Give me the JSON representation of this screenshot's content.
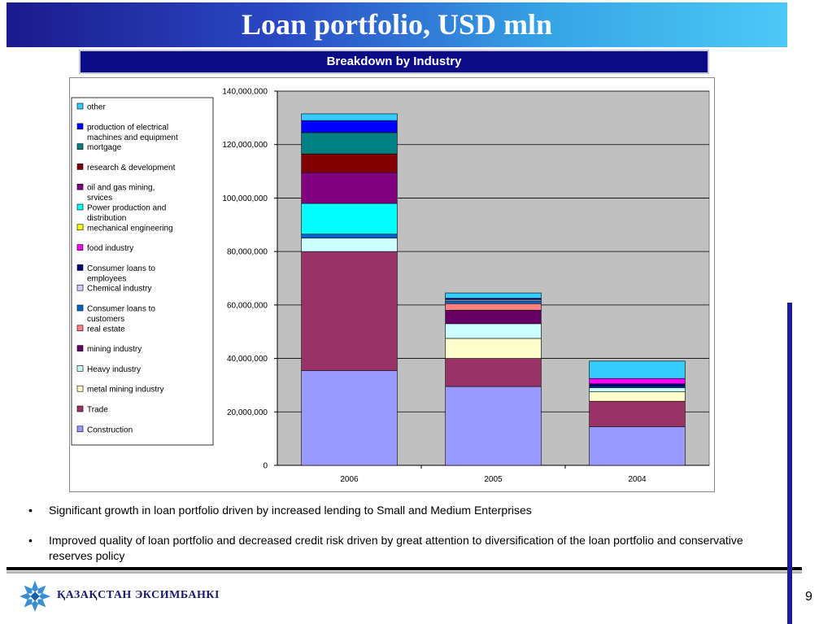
{
  "header": {
    "title": "Loan portfolio, USD mln",
    "subtitle": "Breakdown by Industry"
  },
  "bullets": [
    "Significant growth in loan portfolio driven by increased lending to Small and Medium Enterprises",
    "Improved quality of loan portfolio and decreased credit risk driven by great attention to diversification of the loan portfolio and conservative reserves policy"
  ],
  "footer": {
    "logo_text": "ҚАЗАҚСТАН ЭКСИМБАНКІ",
    "page_number": "9",
    "bullet_symbol": "•"
  },
  "chart_data": {
    "type": "bar",
    "stacked": true,
    "categories": [
      "2006",
      "2005",
      "2004"
    ],
    "ylim": [
      0,
      140000000
    ],
    "yticks": [
      0,
      20000000,
      40000000,
      60000000,
      80000000,
      100000000,
      120000000,
      140000000
    ],
    "ytick_labels": [
      "0",
      "20,000,000",
      "40,000,000",
      "60,000,000",
      "80,000,000",
      "100,000,000",
      "120,000,000",
      "140,000,000"
    ],
    "grid": true,
    "legend_position": "left",
    "series": [
      {
        "name": "Construction",
        "color": "#9999ff",
        "values": [
          35500000,
          29500000,
          14500000
        ]
      },
      {
        "name": "Trade",
        "color": "#993366",
        "values": [
          44500000,
          10500000,
          9500000
        ]
      },
      {
        "name": "metal mining industry",
        "color": "#ffffcc",
        "values": [
          0,
          7500000,
          3500000
        ]
      },
      {
        "name": "Heavy industry",
        "color": "#ccffff",
        "values": [
          5000000,
          5500000,
          1500000
        ]
      },
      {
        "name": "mining industry",
        "color": "#660066",
        "values": [
          0,
          5000000,
          0
        ]
      },
      {
        "name": "real estate",
        "color": "#ff8080",
        "values": [
          0,
          2500000,
          0
        ]
      },
      {
        "name": "Consumer loans to customers",
        "color": "#0066cc",
        "values": [
          1500000,
          1000000,
          500000
        ]
      },
      {
        "name": "Chemical industry",
        "color": "#ccccff",
        "values": [
          0,
          500000,
          0
        ]
      },
      {
        "name": "Consumer loans to employees",
        "color": "#000080",
        "values": [
          0,
          500000,
          1000000
        ]
      },
      {
        "name": "food industry",
        "color": "#ff00ff",
        "values": [
          0,
          0,
          2000000
        ]
      },
      {
        "name": "mechanical engineering",
        "color": "#ffff00",
        "values": [
          0,
          0,
          0
        ]
      },
      {
        "name": "Power production and distribution",
        "color": "#00ffff",
        "values": [
          11500000,
          0,
          0
        ]
      },
      {
        "name": "oil and gas mining, srvices",
        "color": "#800080",
        "values": [
          11500000,
          0,
          0
        ]
      },
      {
        "name": "research & development",
        "color": "#800000",
        "values": [
          7000000,
          0,
          0
        ]
      },
      {
        "name": "mortgage",
        "color": "#008080",
        "values": [
          8000000,
          0,
          0
        ]
      },
      {
        "name": "production of electrical machines and equipment",
        "color": "#0000ff",
        "values": [
          4500000,
          0,
          0
        ]
      },
      {
        "name": "other",
        "color": "#33ccff",
        "values": [
          2500000,
          2000000,
          6500000
        ]
      }
    ],
    "legend_order": [
      "other",
      "production of electrical machines and equipment",
      "mortgage",
      "research & development",
      "oil and gas mining, srvices",
      "Power production and distribution",
      "mechanical engineering",
      "food industry",
      "Consumer loans to employees",
      "Chemical industry",
      "Consumer loans to customers",
      "real estate",
      "mining industry",
      "Heavy industry",
      "metal mining industry",
      "Trade",
      "Construction"
    ]
  }
}
